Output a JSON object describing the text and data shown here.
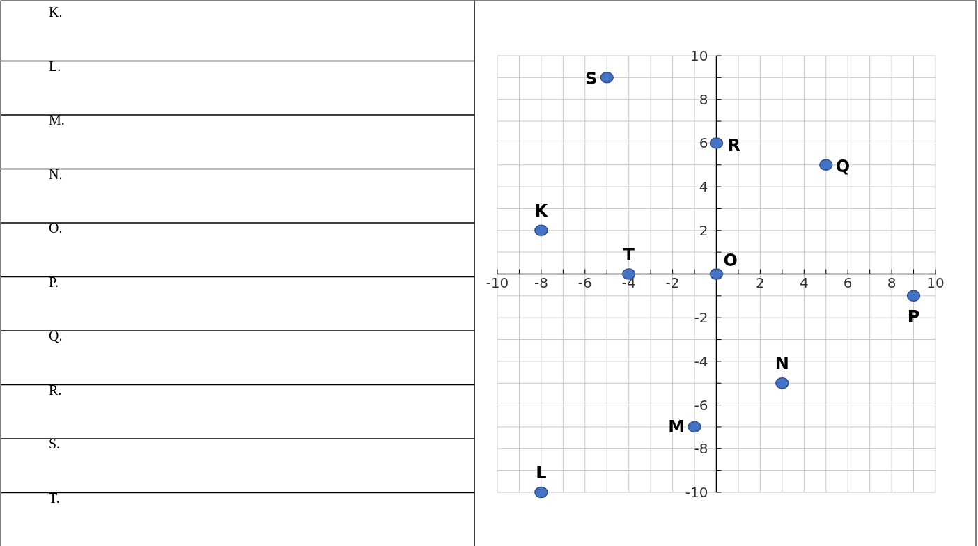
{
  "chart_data": [
    {
      "type": "other",
      "annotations": [
        "K.",
        "L.",
        "M.",
        "N.",
        "O.",
        "P.",
        "Q.",
        "R.",
        "S.",
        "T."
      ]
    },
    {
      "type": "scatter",
      "x": [
        -8,
        -8,
        -1,
        3,
        0,
        9,
        5,
        0,
        -5,
        -4
      ],
      "values": [
        2,
        -10,
        -7,
        -5,
        0,
        -1,
        5,
        6,
        9,
        0
      ],
      "color": "#4472c4",
      "marker": "circle",
      "grid": true,
      "xlim": [
        -10,
        10
      ],
      "ylim": [
        -10,
        10
      ],
      "xticks": [
        -10,
        {
          "value": -9,
          "label": null
        },
        -8,
        {
          "value": -7,
          "label": null
        },
        -6,
        {
          "value": -5,
          "label": null
        },
        -4,
        {
          "value": -3,
          "label": null
        },
        -2,
        {
          "value": -1,
          "label": null
        },
        {
          "value": 1,
          "label": null
        },
        2,
        {
          "value": 3,
          "label": null
        },
        4,
        {
          "value": 5,
          "label": null
        },
        6,
        {
          "value": 7,
          "label": null
        },
        8,
        {
          "value": 9,
          "label": null
        },
        10
      ],
      "yticks": [
        -10,
        {
          "value": -9,
          "label": null
        },
        -8,
        {
          "value": -7,
          "label": null
        },
        -6,
        {
          "value": -5,
          "label": null
        },
        -4,
        {
          "value": -3,
          "label": null
        },
        -2,
        {
          "value": -1,
          "label": null
        },
        {
          "value": 1,
          "label": null
        },
        2,
        {
          "value": 3,
          "label": null
        },
        4,
        {
          "value": 5,
          "label": null
        },
        6,
        {
          "value": 7,
          "label": null
        },
        8,
        {
          "value": 9,
          "label": null
        },
        10
      ],
      "annotations": [
        {
          "text": "K",
          "x": -8,
          "y": 2
        },
        {
          "text": "L",
          "x": -8,
          "y": -10
        },
        {
          "text": "M",
          "x": -1,
          "y": -7
        },
        {
          "text": "N",
          "x": 3,
          "y": -5
        },
        {
          "text": "O",
          "x": 0,
          "y": 0
        },
        {
          "text": "P",
          "x": 9,
          "y": -1
        },
        {
          "text": "Q",
          "x": 5,
          "y": 5
        },
        {
          "text": "R",
          "x": 0,
          "y": 6
        },
        {
          "text": "S",
          "x": -5,
          "y": 9
        },
        {
          "text": "T",
          "x": -4,
          "y": 0
        }
      ]
    }
  ]
}
